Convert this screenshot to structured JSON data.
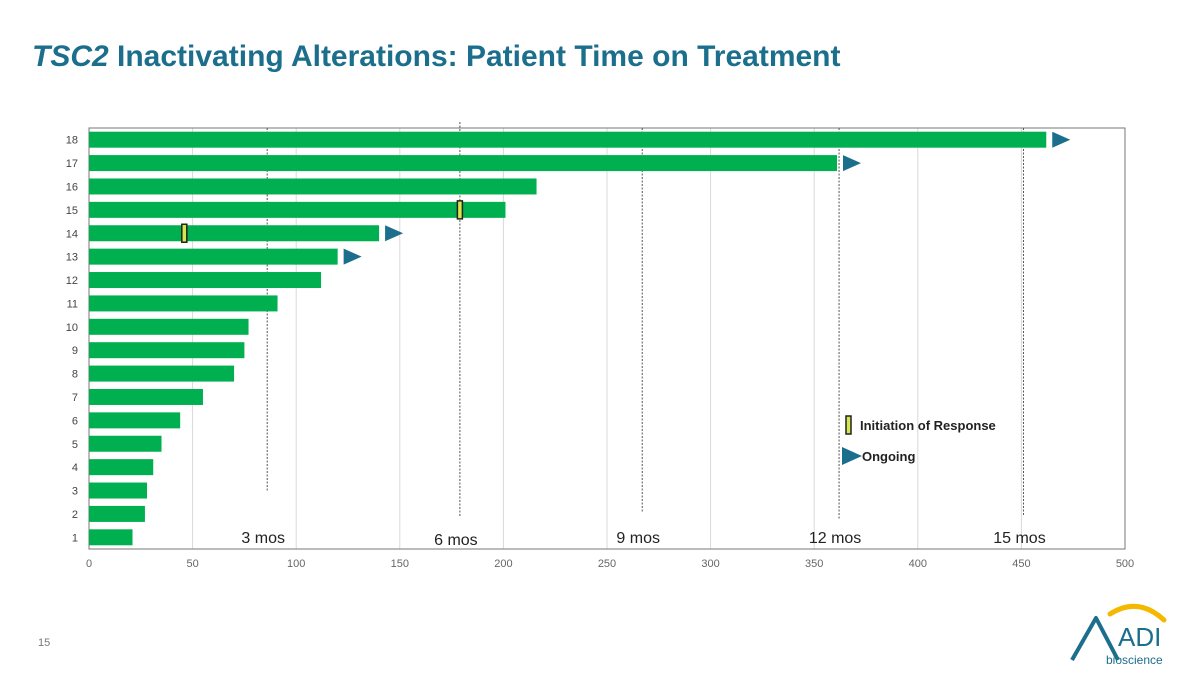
{
  "slide": {
    "title_italic": "TSC2",
    "title_rest": " Inactivating Alterations: Patient Time on Treatment",
    "page_number": "15"
  },
  "brand": {
    "logo_text": "ADI",
    "tagline": "bioscience",
    "colors": {
      "primary": "#1b6e8c",
      "arc": "#f5b800"
    }
  },
  "chart_data": {
    "type": "bar",
    "orientation": "horizontal",
    "categories": [
      "1",
      "2",
      "3",
      "4",
      "5",
      "6",
      "7",
      "8",
      "9",
      "10",
      "11",
      "12",
      "13",
      "14",
      "15",
      "16",
      "17",
      "18"
    ],
    "values": [
      21,
      27,
      28,
      31,
      35,
      44,
      55,
      70,
      75,
      77,
      91,
      112,
      120,
      140,
      201,
      216,
      361,
      462
    ],
    "ongoing": [
      "13",
      "14",
      "17",
      "18"
    ],
    "response_initiation": [
      {
        "category": "14",
        "x": 46
      },
      {
        "category": "15",
        "x": 179
      }
    ],
    "xlim": [
      0,
      500
    ],
    "xticks": [
      0,
      50,
      100,
      150,
      200,
      250,
      300,
      350,
      400,
      450,
      500
    ],
    "grid": true,
    "milestones": [
      {
        "label": "3 mos",
        "x": 86
      },
      {
        "label": "6 mos",
        "x": 179
      },
      {
        "label": "9 mos",
        "x": 267
      },
      {
        "label": "12 mos",
        "x": 362
      },
      {
        "label": "15 mos",
        "x": 451
      }
    ],
    "legend": {
      "placement": "bottom-right",
      "items": [
        {
          "label": "Initiation of Response",
          "symbol": "response-marker"
        },
        {
          "label": "Ongoing",
          "symbol": "ongoing-arrow"
        }
      ]
    },
    "colors": {
      "bar": "#00b050",
      "ongoing": "#1b6e8c",
      "response": "#d4e84c",
      "milestone_line": "#555555",
      "grid": "#d9d9d9"
    }
  }
}
